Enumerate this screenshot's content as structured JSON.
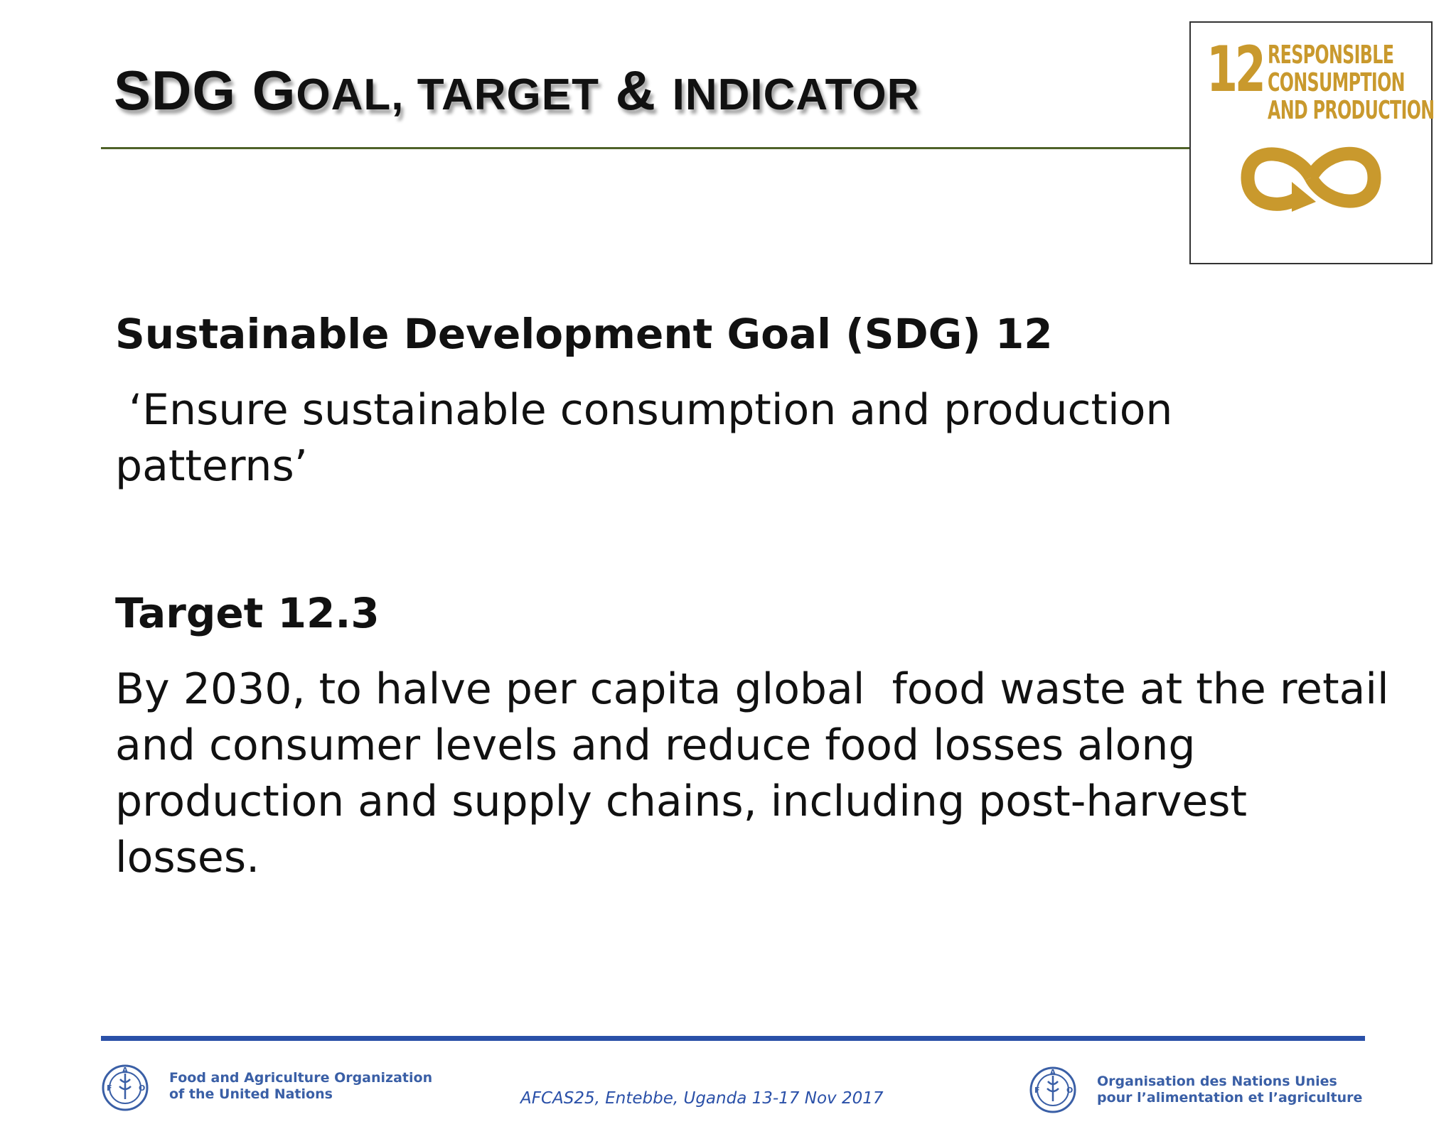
{
  "slide": {
    "title": {
      "initial_1": "SDG G",
      "rest_1": "OAL, TARGET",
      "amp": " & ",
      "rest_2": "INDICATOR"
    },
    "goal_heading": "Sustainable Development Goal (SDG) 12",
    "goal_text_line1": " ‘Ensure sustainable consumption and production",
    "goal_text_line2": "patterns’",
    "target_heading": "Target 12.3",
    "target_text_lines": [
      "By 2030, to halve per capita global  food waste at the retail",
      "and consumer levels and reduce food losses along",
      "production and supply chains, including post-harvest",
      "losses."
    ]
  },
  "sdg_logo": {
    "number": "12",
    "label_lines": [
      "RESPONSIBLE",
      "CONSUMPTION",
      "AND PRODUCTION"
    ],
    "icon": "infinity-arrow-icon",
    "color": "#c9992d"
  },
  "footer": {
    "left_org_lines": [
      "Food and Agriculture Organization",
      "of the United Nations"
    ],
    "right_org_lines": [
      "Organisation des Nations Unies",
      "pour l’alimentation et l’agriculture"
    ],
    "event_caption": "AFCAS25, Entebbe, Uganda 13-17 Nov 2017",
    "emblem_icon": "fao-emblem-icon",
    "rule_color": "#2a50a8",
    "text_color": "#3a5fa6"
  }
}
